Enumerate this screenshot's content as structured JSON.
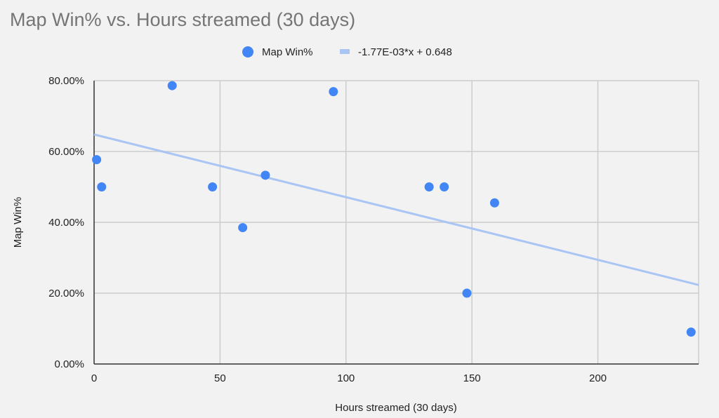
{
  "chart_data": {
    "type": "scatter",
    "title": "Map Win% vs. Hours streamed (30 days)",
    "xlabel": "Hours streamed (30 days)",
    "ylabel": "Map Win%",
    "xlim": [
      0,
      240
    ],
    "ylim": [
      0,
      0.8
    ],
    "x_ticks": [
      {
        "value": 0,
        "label": "0"
      },
      {
        "value": 50,
        "label": "50"
      },
      {
        "value": 100,
        "label": "100"
      },
      {
        "value": 150,
        "label": "150"
      },
      {
        "value": 200,
        "label": "200"
      }
    ],
    "y_ticks": [
      {
        "value": 0,
        "label": "0.00%"
      },
      {
        "value": 0.2,
        "label": "20.00%"
      },
      {
        "value": 0.4,
        "label": "40.00%"
      },
      {
        "value": 0.6,
        "label": "60.00%"
      },
      {
        "value": 0.8,
        "label": "80.00%"
      }
    ],
    "grid": true,
    "legend_position": "top",
    "series": [
      {
        "name": "Map Win%",
        "color": "#4285f4",
        "points": [
          {
            "x": 1,
            "y": 0.577
          },
          {
            "x": 3,
            "y": 0.5
          },
          {
            "x": 31,
            "y": 0.786
          },
          {
            "x": 47,
            "y": 0.5
          },
          {
            "x": 59,
            "y": 0.385
          },
          {
            "x": 68,
            "y": 0.533
          },
          {
            "x": 95,
            "y": 0.769
          },
          {
            "x": 133,
            "y": 0.5
          },
          {
            "x": 139,
            "y": 0.5
          },
          {
            "x": 148,
            "y": 0.2
          },
          {
            "x": 159,
            "y": 0.455
          },
          {
            "x": 237,
            "y": 0.09
          }
        ]
      }
    ],
    "trendline": {
      "label": "-1.77E-03*x + 0.648",
      "slope": -0.00177,
      "intercept": 0.648,
      "color": "#a8c5f4"
    }
  }
}
